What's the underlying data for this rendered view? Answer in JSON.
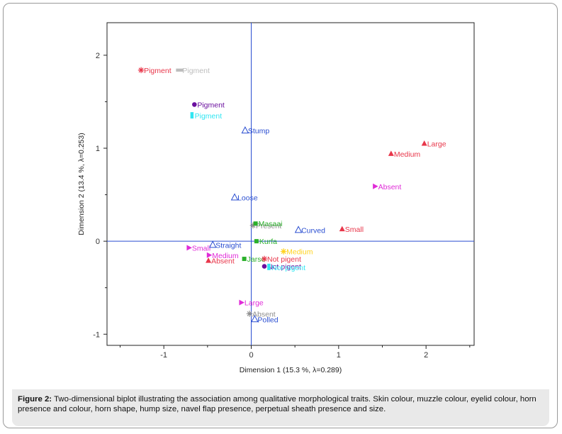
{
  "chart_data": {
    "type": "scatter",
    "title": "",
    "xlabel": "Dimension 1  (15.3 %, λ=0.289)",
    "ylabel": "Dimension 2  (13.4 %, λ=0.253)",
    "xlim": [
      -1.65,
      2.55
    ],
    "ylim": [
      -1.12,
      2.35
    ],
    "xticks": [
      -1,
      0,
      1,
      2
    ],
    "xtick_labels": [
      "-1",
      "0",
      "1",
      "2"
    ],
    "yticks": [
      -1,
      0,
      1,
      2
    ],
    "ytick_labels": [
      "-1",
      "0",
      "1",
      "2"
    ],
    "reference_lines": {
      "x": 0,
      "y": 0,
      "color": "#2a4ed1"
    },
    "grid": false,
    "points": [
      {
        "label": "Pigment",
        "x": -1.26,
        "y": 1.84,
        "marker": "star",
        "color": "#e8364a"
      },
      {
        "label": "Pigment",
        "x": -0.82,
        "y": 1.84,
        "marker": "square-bar",
        "color": "#bdbdbd"
      },
      {
        "label": "Pigment",
        "x": -0.65,
        "y": 1.47,
        "marker": "circle",
        "color": "#6a0f9e"
      },
      {
        "label": "Pigment",
        "x": -0.68,
        "y": 1.35,
        "marker": "rect",
        "color": "#31e6f2"
      },
      {
        "label": "Stump",
        "x": -0.07,
        "y": 1.19,
        "marker": "triangle-open",
        "color": "#2a4ed1"
      },
      {
        "label": "Large",
        "x": 1.98,
        "y": 1.05,
        "marker": "triangle",
        "color": "#e8364a"
      },
      {
        "label": "Medium",
        "x": 1.6,
        "y": 0.94,
        "marker": "triangle",
        "color": "#e8364a"
      },
      {
        "label": "Absent",
        "x": 1.42,
        "y": 0.59,
        "marker": "arrow-right",
        "color": "#e02bd8"
      },
      {
        "label": "Loose",
        "x": -0.19,
        "y": 0.47,
        "marker": "triangle-open",
        "color": "#2a4ed1"
      },
      {
        "label": "Present",
        "x": 0.02,
        "y": 0.17,
        "marker": "star",
        "color": "#8e8e8e"
      },
      {
        "label": "Masaai",
        "x": 0.05,
        "y": 0.19,
        "marker": "square",
        "color": "#2bb02b"
      },
      {
        "label": "Curved",
        "x": 0.54,
        "y": 0.12,
        "marker": "triangle-open",
        "color": "#2a4ed1"
      },
      {
        "label": "Small",
        "x": 1.04,
        "y": 0.13,
        "marker": "triangle",
        "color": "#e8364a"
      },
      {
        "label": "Kurfa",
        "x": 0.06,
        "y": 0.0,
        "marker": "square",
        "color": "#2bb02b"
      },
      {
        "label": "Small",
        "x": -0.71,
        "y": -0.07,
        "marker": "arrow-right",
        "color": "#e02bd8"
      },
      {
        "label": "Straight",
        "x": -0.44,
        "y": -0.04,
        "marker": "triangle-open",
        "color": "#2a4ed1"
      },
      {
        "label": "Medium",
        "x": 0.37,
        "y": -0.11,
        "marker": "star",
        "color": "#ffd21c"
      },
      {
        "label": "Medium",
        "x": -0.48,
        "y": -0.15,
        "marker": "arrow-right",
        "color": "#e02bd8"
      },
      {
        "label": "Absent",
        "x": -0.49,
        "y": -0.21,
        "marker": "triangle",
        "color": "#e8364a"
      },
      {
        "label": "Jarso",
        "x": -0.08,
        "y": -0.19,
        "marker": "square",
        "color": "#2bb02b"
      },
      {
        "label": "Not pigent",
        "x": 0.15,
        "y": -0.19,
        "marker": "star",
        "color": "#e8364a"
      },
      {
        "label": "Not pigent",
        "x": 0.15,
        "y": -0.27,
        "marker": "circle",
        "color": "#6a0f9e"
      },
      {
        "label": "Not pigent",
        "x": 0.2,
        "y": -0.28,
        "marker": "rect",
        "color": "#31e6f2"
      },
      {
        "label": "Large",
        "x": -0.11,
        "y": -0.66,
        "marker": "arrow-right",
        "color": "#e02bd8"
      },
      {
        "label": "Absent",
        "x": -0.02,
        "y": -0.78,
        "marker": "star",
        "color": "#8e8e8e"
      },
      {
        "label": "Polled",
        "x": 0.04,
        "y": -0.84,
        "marker": "triangle-open",
        "color": "#2a4ed1"
      }
    ]
  },
  "caption": {
    "label": "Figure 2:",
    "text": "Two-dimensional biplot illustrating the association among qualitative morphological traits. Skin colour, muzzle colour, eyelid colour, horn presence and colour, horn shape, hump size, navel flap presence, perpetual sheath presence and size."
  }
}
